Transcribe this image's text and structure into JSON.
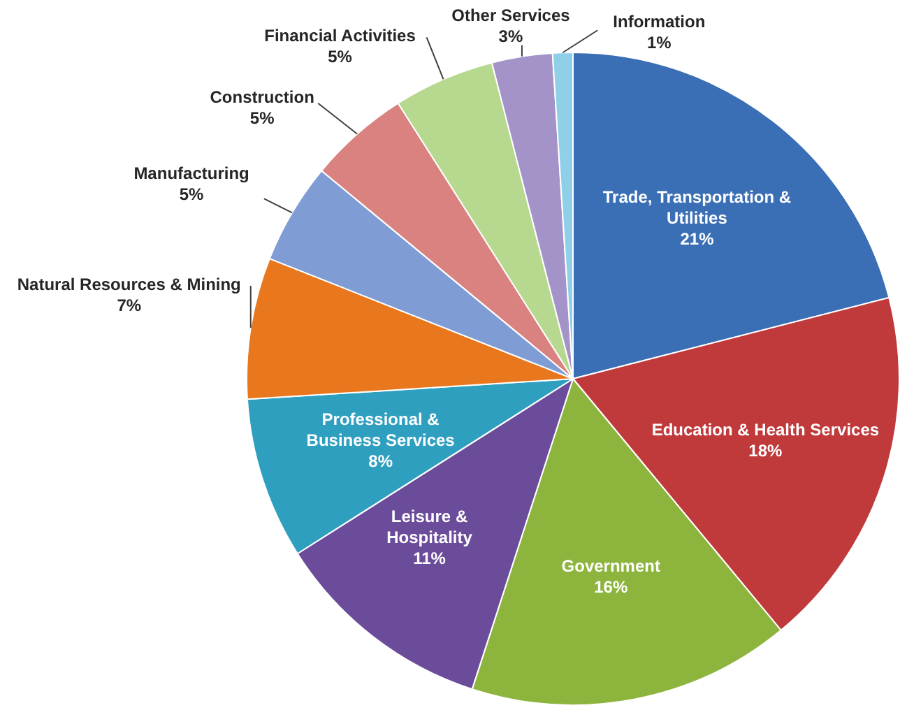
{
  "chart_data": {
    "type": "pie",
    "categories": [
      "Trade, Transportation & Utilities",
      "Education & Health Services",
      "Government",
      "Leisure & Hospitality",
      "Professional & Business Services",
      "Natural Resources & Mining",
      "Manufacturing",
      "Construction",
      "Financial Activities",
      "Other Services",
      "Information"
    ],
    "values": [
      21,
      18,
      16,
      11,
      8,
      7,
      5,
      5,
      5,
      3,
      1
    ],
    "colors": [
      "#3a6eb5",
      "#c0393b",
      "#8db43c",
      "#6b4c9a",
      "#2f9fc0",
      "#e8771e",
      "#7f9dd4",
      "#d9827f",
      "#b6d88f",
      "#a493c8",
      "#8fd0e8"
    ],
    "value_labels": [
      "21%",
      "18%",
      "16%",
      "11%",
      "8%",
      "7%",
      "5%",
      "5%",
      "5%",
      "3%",
      "1%"
    ]
  }
}
